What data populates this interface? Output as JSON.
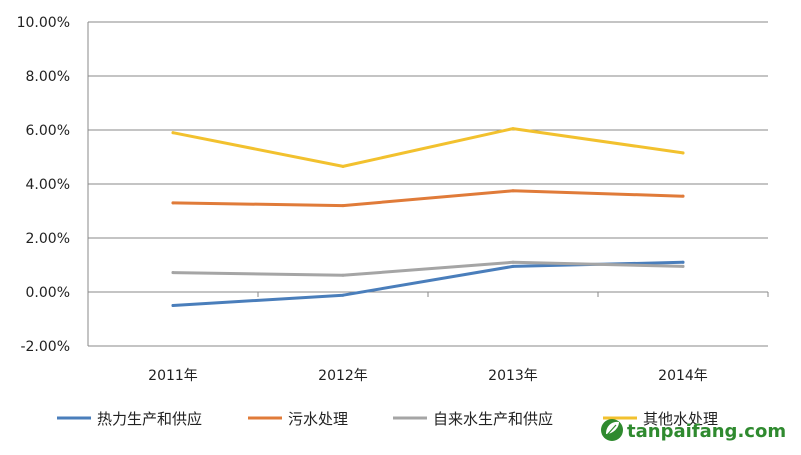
{
  "chart_data": {
    "type": "line",
    "title": "",
    "xlabel": "",
    "ylabel": "",
    "categories": [
      "2011年",
      "2012年",
      "2013年",
      "2014年"
    ],
    "ylim": [
      -2.0,
      10.0
    ],
    "ytick_values": [
      -2,
      0,
      2,
      4,
      6,
      8,
      10
    ],
    "ytick_labels": [
      "-2.00%",
      "0.00%",
      "2.00%",
      "4.00%",
      "6.00%",
      "8.00%",
      "10.00%"
    ],
    "grid": true,
    "legend_position": "bottom",
    "series": [
      {
        "name": "热力生产和供应",
        "color": "#4a7ebb",
        "values": [
          -0.5,
          -0.12,
          0.95,
          1.1
        ]
      },
      {
        "name": "污水处理",
        "color": "#e07b39",
        "values": [
          3.3,
          3.2,
          3.75,
          3.55
        ]
      },
      {
        "name": "自来水生产和供应",
        "color": "#a5a5a5",
        "values": [
          0.72,
          0.62,
          1.1,
          0.95
        ]
      },
      {
        "name": "其他水处理",
        "color": "#f2c12e",
        "values": [
          5.9,
          4.65,
          6.05,
          5.15
        ]
      }
    ]
  },
  "watermark": {
    "text": "tanpaifang.com",
    "icon": "leaf-icon",
    "color": "#2f8a2f"
  }
}
